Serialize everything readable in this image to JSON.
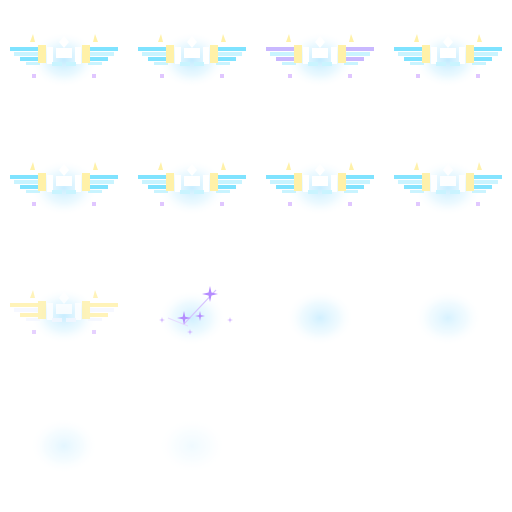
{
  "sprite_sheet": {
    "colors": {
      "glow": "#bfeaff",
      "glow_core": "#d8f3ff",
      "wing_cyan": "#7fe3ff",
      "wing_light": "#c9f4ff",
      "wing_white": "#ffffff",
      "wing_yellow": "#fff1a8",
      "wing_lilac": "#c9b8ff",
      "sparkle": "#b58cff",
      "dot_violet": "#e0c6ff"
    },
    "frames": [
      {
        "kind": "wings",
        "glow": 1.0,
        "wing": 1.0,
        "tint": "cyan",
        "sparkles": false
      },
      {
        "kind": "wings",
        "glow": 1.0,
        "wing": 1.0,
        "tint": "cyan",
        "sparkles": false
      },
      {
        "kind": "wings",
        "glow": 1.0,
        "wing": 1.0,
        "tint": "lilac",
        "sparkles": false
      },
      {
        "kind": "wings",
        "glow": 1.0,
        "wing": 1.0,
        "tint": "cyan",
        "sparkles": false
      },
      {
        "kind": "wings",
        "glow": 0.9,
        "wing": 1.0,
        "tint": "cyan",
        "sparkles": false
      },
      {
        "kind": "wings",
        "glow": 0.9,
        "wing": 1.0,
        "tint": "cyan",
        "sparkles": false
      },
      {
        "kind": "wings",
        "glow": 0.9,
        "wing": 1.0,
        "tint": "cyan",
        "sparkles": false
      },
      {
        "kind": "wings",
        "glow": 0.9,
        "wing": 0.95,
        "tint": "cyan",
        "sparkles": false
      },
      {
        "kind": "wings",
        "glow": 0.9,
        "wing": 0.8,
        "tint": "faded",
        "sparkles": false
      },
      {
        "kind": "sparkles",
        "glow": 0.8,
        "wing": 0.0,
        "tint": "violet",
        "sparkles": true
      },
      {
        "kind": "glow",
        "glow": 0.75,
        "wing": 0.0,
        "tint": "cyan",
        "sparkles": false
      },
      {
        "kind": "glow",
        "glow": 0.65,
        "wing": 0.0,
        "tint": "cyan",
        "sparkles": false
      },
      {
        "kind": "glow",
        "glow": 0.45,
        "wing": 0.0,
        "tint": "cyan",
        "sparkles": false
      },
      {
        "kind": "glow",
        "glow": 0.25,
        "wing": 0.0,
        "tint": "cyan",
        "sparkles": false
      },
      {
        "kind": "empty",
        "glow": 0.0,
        "wing": 0.0,
        "tint": "none",
        "sparkles": false
      },
      {
        "kind": "empty",
        "glow": 0.0,
        "wing": 0.0,
        "tint": "none",
        "sparkles": false
      }
    ]
  }
}
